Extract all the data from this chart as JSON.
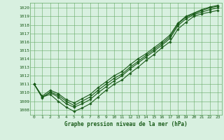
{
  "xlabel": "Graphe pression niveau de la mer (hPa)",
  "bg_color": "#d8f0e0",
  "grid_color": "#66aa66",
  "line_color": "#1a5c1a",
  "marker_color": "#1a5c1a",
  "ylim": [
    1007.4,
    1020.6
  ],
  "xlim": [
    -0.5,
    23.5
  ],
  "yticks": [
    1008,
    1009,
    1010,
    1011,
    1012,
    1013,
    1014,
    1015,
    1016,
    1017,
    1018,
    1019,
    1020
  ],
  "xticks": [
    0,
    1,
    2,
    3,
    4,
    5,
    6,
    7,
    8,
    9,
    10,
    11,
    12,
    13,
    14,
    15,
    16,
    17,
    18,
    19,
    20,
    21,
    22,
    23
  ],
  "series": [
    [
      1011.0,
      1009.5,
      1009.8,
      1009.0,
      1008.3,
      1007.8,
      1008.2,
      1008.7,
      1009.5,
      1010.3,
      1011.0,
      1011.5,
      1012.3,
      1013.0,
      1013.8,
      1014.5,
      1015.3,
      1016.0,
      1017.5,
      1018.3,
      1019.0,
      1019.3,
      1019.5,
      1019.7
    ],
    [
      1011.0,
      1009.5,
      1010.0,
      1009.5,
      1008.7,
      1008.3,
      1008.7,
      1009.2,
      1010.0,
      1010.7,
      1011.4,
      1012.0,
      1012.8,
      1013.5,
      1014.2,
      1014.9,
      1015.6,
      1016.4,
      1017.9,
      1018.7,
      1019.2,
      1019.5,
      1019.8,
      1020.0
    ],
    [
      1011.0,
      1009.4,
      1010.1,
      1009.7,
      1009.0,
      1008.5,
      1009.0,
      1009.5,
      1010.3,
      1011.0,
      1011.7,
      1012.2,
      1013.0,
      1013.7,
      1014.4,
      1015.1,
      1015.8,
      1016.6,
      1018.1,
      1018.9,
      1019.3,
      1019.7,
      1020.0,
      1020.2
    ],
    [
      1011.0,
      1009.6,
      1010.3,
      1009.9,
      1009.2,
      1008.8,
      1009.3,
      1009.8,
      1010.6,
      1011.3,
      1012.0,
      1012.5,
      1013.3,
      1014.0,
      1014.6,
      1015.3,
      1016.0,
      1016.8,
      1018.2,
      1019.0,
      1019.4,
      1019.8,
      1020.1,
      1020.3
    ]
  ]
}
